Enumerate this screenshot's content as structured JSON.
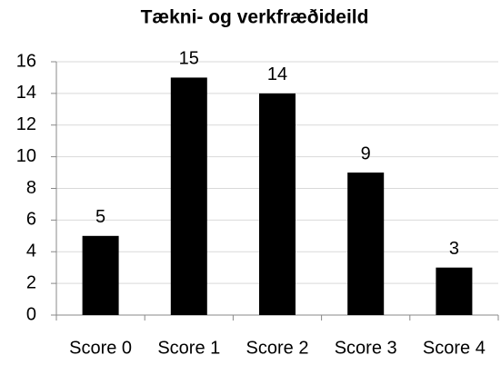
{
  "chart_data": {
    "type": "bar",
    "title": "Tækni- og verkfræðideild",
    "categories": [
      "Score 0",
      "Score 1",
      "Score 2",
      "Score 3",
      "Score 4"
    ],
    "values": [
      5,
      15,
      14,
      9,
      3
    ],
    "color": "#000000",
    "ylim": [
      0,
      16
    ],
    "yticks": [
      0,
      2,
      4,
      6,
      8,
      10,
      12,
      14,
      16
    ],
    "grid": true
  }
}
